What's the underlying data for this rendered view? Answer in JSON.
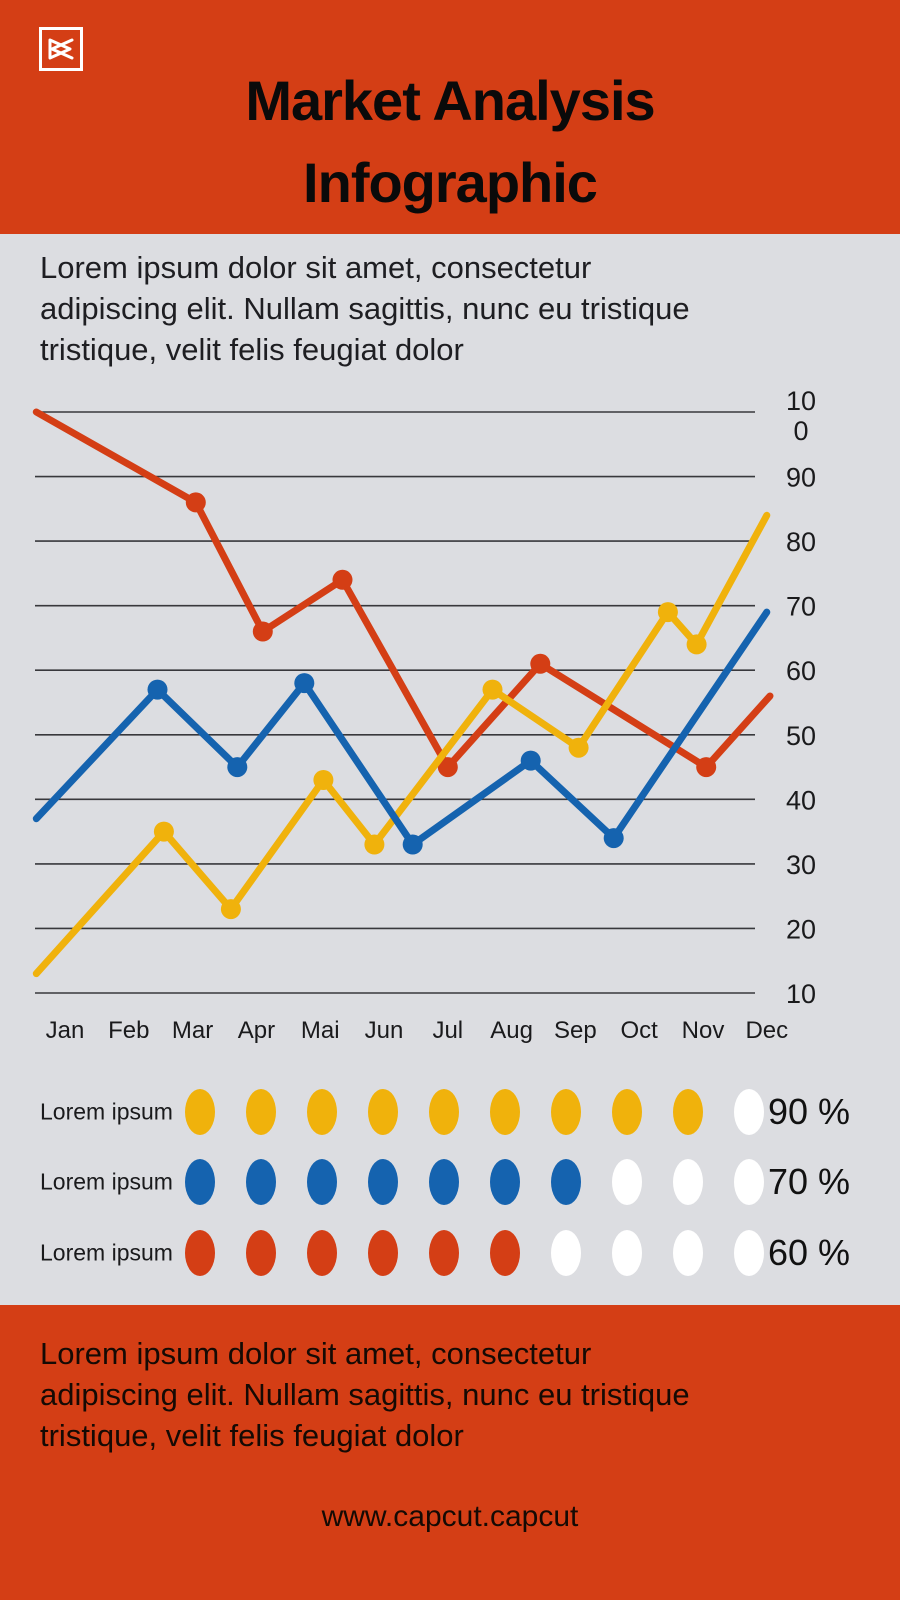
{
  "header": {
    "logo": "capcut-logo",
    "title_line1": "Market Analysis",
    "title_line2": "Infographic"
  },
  "intro": {
    "line1": "Lorem ipsum dolor sit amet, consectetur",
    "line2": "adipiscing elit. Nullam sagittis, nunc eu tristique",
    "line3": "tristique, velit felis feugiat dolor"
  },
  "chart_data": {
    "type": "line",
    "title": "",
    "categories": [
      "Jan",
      "Feb",
      "Mar",
      "Apr",
      "Mai",
      "Jun",
      "Jul",
      "Aug",
      "Sep",
      "Oct",
      "Nov",
      "Dec"
    ],
    "y_ticks": [
      100,
      90,
      80,
      70,
      60,
      50,
      40,
      30,
      20,
      10
    ],
    "ylim": [
      10,
      100
    ],
    "grid": true,
    "axis_label_side": "right",
    "legend_position": "none",
    "series": [
      {
        "name": "red-series",
        "color": "#D43E15",
        "points": [
          {
            "m": -0.45,
            "v": 100,
            "dot": false
          },
          {
            "m": 2.05,
            "v": 86,
            "dot": true
          },
          {
            "m": 3.1,
            "v": 66,
            "dot": true
          },
          {
            "m": 4.35,
            "v": 74,
            "dot": true
          },
          {
            "m": 6.0,
            "v": 45,
            "dot": true
          },
          {
            "m": 7.45,
            "v": 61,
            "dot": true
          },
          {
            "m": 10.05,
            "v": 45,
            "dot": true
          },
          {
            "m": 11.05,
            "v": 56,
            "dot": false
          }
        ]
      },
      {
        "name": "yellow-series",
        "color": "#F0B20C",
        "points": [
          {
            "m": -0.45,
            "v": 13,
            "dot": false
          },
          {
            "m": 1.55,
            "v": 35,
            "dot": true
          },
          {
            "m": 2.6,
            "v": 23,
            "dot": true
          },
          {
            "m": 4.05,
            "v": 43,
            "dot": true
          },
          {
            "m": 4.85,
            "v": 33,
            "dot": true
          },
          {
            "m": 6.7,
            "v": 57,
            "dot": true
          },
          {
            "m": 8.05,
            "v": 48,
            "dot": true
          },
          {
            "m": 9.45,
            "v": 69,
            "dot": true
          },
          {
            "m": 9.9,
            "v": 64,
            "dot": true
          },
          {
            "m": 11.0,
            "v": 84,
            "dot": false
          }
        ]
      },
      {
        "name": "blue-series",
        "color": "#1563AF",
        "points": [
          {
            "m": -0.45,
            "v": 37,
            "dot": false
          },
          {
            "m": 1.45,
            "v": 57,
            "dot": true
          },
          {
            "m": 2.7,
            "v": 45,
            "dot": true
          },
          {
            "m": 3.75,
            "v": 58,
            "dot": true
          },
          {
            "m": 5.45,
            "v": 33,
            "dot": true
          },
          {
            "m": 7.3,
            "v": 46,
            "dot": true
          },
          {
            "m": 8.6,
            "v": 34,
            "dot": true
          },
          {
            "m": 11.0,
            "v": 69,
            "dot": false
          }
        ]
      }
    ]
  },
  "legend": {
    "rows": [
      {
        "label": "Lorem ipsum",
        "color": "#F0B20C",
        "filled": 9,
        "total": 10,
        "percent": "90 %"
      },
      {
        "label": "Lorem ipsum",
        "color": "#1563AF",
        "filled": 7,
        "total": 10,
        "percent": "70 %"
      },
      {
        "label": "Lorem ipsum",
        "color": "#D43E15",
        "filled": 6,
        "total": 10,
        "percent": "60 %"
      }
    ]
  },
  "footer": {
    "line1": "Lorem ipsum dolor sit amet, consectetur",
    "line2": "adipiscing elit. Nullam sagittis, nunc eu tristique",
    "line3": "tristique, velit felis feugiat dolor",
    "website": "www.capcut.capcut"
  },
  "colors": {
    "accent_red": "#D43E15",
    "accent_blue": "#1563AF",
    "accent_yellow": "#F0B20C",
    "background_gray": "#DCDDE1",
    "gridline": "#38383C",
    "text_dark": "#1A1A1C",
    "white": "#FFFFFF"
  }
}
